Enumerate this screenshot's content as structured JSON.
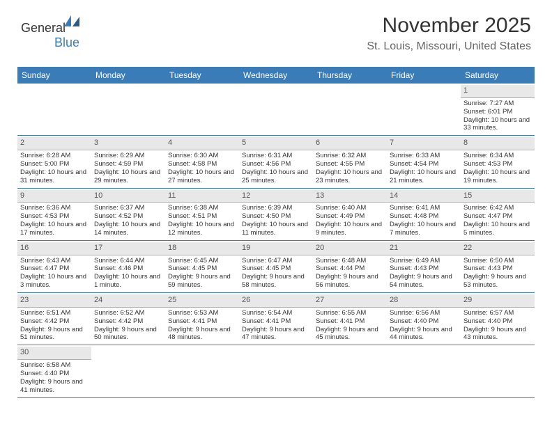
{
  "logo": {
    "textGeneral": "General",
    "textBlue": "Blue"
  },
  "header": {
    "title": "November 2025",
    "subtitle": "St. Louis, Missouri, United States"
  },
  "colors": {
    "headerBar": "#3a7cb8",
    "dayNumBg": "#e8e8e8",
    "background": "#ffffff",
    "text": "#333333",
    "subText": "#666666"
  },
  "dayNames": [
    "Sunday",
    "Monday",
    "Tuesday",
    "Wednesday",
    "Thursday",
    "Friday",
    "Saturday"
  ],
  "weeks": [
    [
      null,
      null,
      null,
      null,
      null,
      null,
      {
        "d": "1",
        "sr": "Sunrise: 7:27 AM",
        "ss": "Sunset: 6:01 PM",
        "dl": "Daylight: 10 hours and 33 minutes."
      }
    ],
    [
      {
        "d": "2",
        "sr": "Sunrise: 6:28 AM",
        "ss": "Sunset: 5:00 PM",
        "dl": "Daylight: 10 hours and 31 minutes."
      },
      {
        "d": "3",
        "sr": "Sunrise: 6:29 AM",
        "ss": "Sunset: 4:59 PM",
        "dl": "Daylight: 10 hours and 29 minutes."
      },
      {
        "d": "4",
        "sr": "Sunrise: 6:30 AM",
        "ss": "Sunset: 4:58 PM",
        "dl": "Daylight: 10 hours and 27 minutes."
      },
      {
        "d": "5",
        "sr": "Sunrise: 6:31 AM",
        "ss": "Sunset: 4:56 PM",
        "dl": "Daylight: 10 hours and 25 minutes."
      },
      {
        "d": "6",
        "sr": "Sunrise: 6:32 AM",
        "ss": "Sunset: 4:55 PM",
        "dl": "Daylight: 10 hours and 23 minutes."
      },
      {
        "d": "7",
        "sr": "Sunrise: 6:33 AM",
        "ss": "Sunset: 4:54 PM",
        "dl": "Daylight: 10 hours and 21 minutes."
      },
      {
        "d": "8",
        "sr": "Sunrise: 6:34 AM",
        "ss": "Sunset: 4:53 PM",
        "dl": "Daylight: 10 hours and 19 minutes."
      }
    ],
    [
      {
        "d": "9",
        "sr": "Sunrise: 6:36 AM",
        "ss": "Sunset: 4:53 PM",
        "dl": "Daylight: 10 hours and 17 minutes."
      },
      {
        "d": "10",
        "sr": "Sunrise: 6:37 AM",
        "ss": "Sunset: 4:52 PM",
        "dl": "Daylight: 10 hours and 14 minutes."
      },
      {
        "d": "11",
        "sr": "Sunrise: 6:38 AM",
        "ss": "Sunset: 4:51 PM",
        "dl": "Daylight: 10 hours and 12 minutes."
      },
      {
        "d": "12",
        "sr": "Sunrise: 6:39 AM",
        "ss": "Sunset: 4:50 PM",
        "dl": "Daylight: 10 hours and 11 minutes."
      },
      {
        "d": "13",
        "sr": "Sunrise: 6:40 AM",
        "ss": "Sunset: 4:49 PM",
        "dl": "Daylight: 10 hours and 9 minutes."
      },
      {
        "d": "14",
        "sr": "Sunrise: 6:41 AM",
        "ss": "Sunset: 4:48 PM",
        "dl": "Daylight: 10 hours and 7 minutes."
      },
      {
        "d": "15",
        "sr": "Sunrise: 6:42 AM",
        "ss": "Sunset: 4:47 PM",
        "dl": "Daylight: 10 hours and 5 minutes."
      }
    ],
    [
      {
        "d": "16",
        "sr": "Sunrise: 6:43 AM",
        "ss": "Sunset: 4:47 PM",
        "dl": "Daylight: 10 hours and 3 minutes."
      },
      {
        "d": "17",
        "sr": "Sunrise: 6:44 AM",
        "ss": "Sunset: 4:46 PM",
        "dl": "Daylight: 10 hours and 1 minute."
      },
      {
        "d": "18",
        "sr": "Sunrise: 6:45 AM",
        "ss": "Sunset: 4:45 PM",
        "dl": "Daylight: 9 hours and 59 minutes."
      },
      {
        "d": "19",
        "sr": "Sunrise: 6:47 AM",
        "ss": "Sunset: 4:45 PM",
        "dl": "Daylight: 9 hours and 58 minutes."
      },
      {
        "d": "20",
        "sr": "Sunrise: 6:48 AM",
        "ss": "Sunset: 4:44 PM",
        "dl": "Daylight: 9 hours and 56 minutes."
      },
      {
        "d": "21",
        "sr": "Sunrise: 6:49 AM",
        "ss": "Sunset: 4:43 PM",
        "dl": "Daylight: 9 hours and 54 minutes."
      },
      {
        "d": "22",
        "sr": "Sunrise: 6:50 AM",
        "ss": "Sunset: 4:43 PM",
        "dl": "Daylight: 9 hours and 53 minutes."
      }
    ],
    [
      {
        "d": "23",
        "sr": "Sunrise: 6:51 AM",
        "ss": "Sunset: 4:42 PM",
        "dl": "Daylight: 9 hours and 51 minutes."
      },
      {
        "d": "24",
        "sr": "Sunrise: 6:52 AM",
        "ss": "Sunset: 4:42 PM",
        "dl": "Daylight: 9 hours and 50 minutes."
      },
      {
        "d": "25",
        "sr": "Sunrise: 6:53 AM",
        "ss": "Sunset: 4:41 PM",
        "dl": "Daylight: 9 hours and 48 minutes."
      },
      {
        "d": "26",
        "sr": "Sunrise: 6:54 AM",
        "ss": "Sunset: 4:41 PM",
        "dl": "Daylight: 9 hours and 47 minutes."
      },
      {
        "d": "27",
        "sr": "Sunrise: 6:55 AM",
        "ss": "Sunset: 4:41 PM",
        "dl": "Daylight: 9 hours and 45 minutes."
      },
      {
        "d": "28",
        "sr": "Sunrise: 6:56 AM",
        "ss": "Sunset: 4:40 PM",
        "dl": "Daylight: 9 hours and 44 minutes."
      },
      {
        "d": "29",
        "sr": "Sunrise: 6:57 AM",
        "ss": "Sunset: 4:40 PM",
        "dl": "Daylight: 9 hours and 43 minutes."
      }
    ],
    [
      {
        "d": "30",
        "sr": "Sunrise: 6:58 AM",
        "ss": "Sunset: 4:40 PM",
        "dl": "Daylight: 9 hours and 41 minutes."
      },
      null,
      null,
      null,
      null,
      null,
      null
    ]
  ]
}
